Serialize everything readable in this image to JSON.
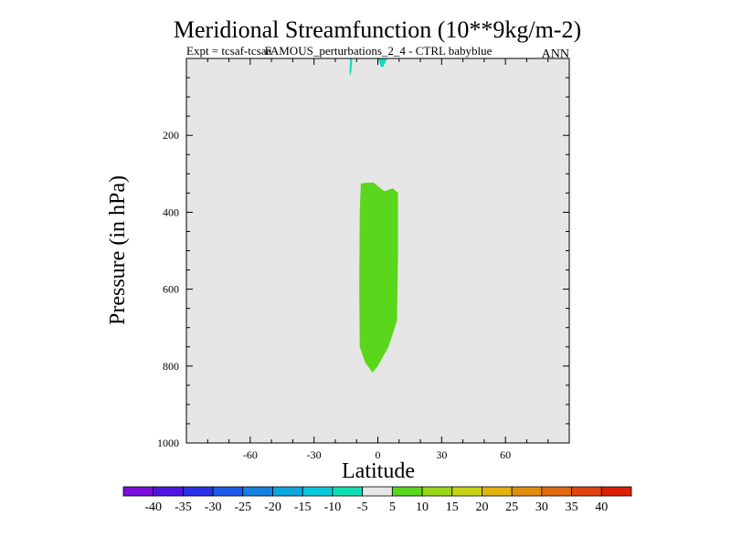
{
  "chart_data": {
    "type": "heatmap",
    "title": "Meridional Streamfunction (10**9kg/m-2)",
    "subtitle_left": "Expt = tcsaf-tcsaa",
    "subtitle_center": "FAMOUS_perturbations_2_4 - CTRL babyblue",
    "season": "ANN",
    "xlabel": "Latitude",
    "ylabel": "Pressure (in hPa)",
    "xlim": [
      -90,
      90
    ],
    "ylim": [
      1000,
      0
    ],
    "xticks": [
      -60,
      -30,
      0,
      30,
      60
    ],
    "yticks": [
      200,
      400,
      600,
      800,
      1000
    ],
    "colorbar": {
      "labels": [
        "-40",
        "-35",
        "-30",
        "-25",
        "-20",
        "-15",
        "-10",
        "-5",
        "5",
        "10",
        "15",
        "20",
        "25",
        "30",
        "35",
        "40"
      ],
      "colors": [
        "#7a0fdc",
        "#5016e0",
        "#2a32e6",
        "#1c5ce8",
        "#1682e0",
        "#0ea6e0",
        "#08c8dc",
        "#10dcb4",
        "#e6e6e6",
        "#5ad61c",
        "#96d614",
        "#c8d214",
        "#e2b210",
        "#e08e10",
        "#e06a10",
        "#e04410",
        "#dc2008"
      ]
    },
    "background_fill": "#e6e6e6",
    "regions": [
      {
        "name": "positive-5-to-10",
        "color": "#5ad61c",
        "polygon": [
          [
            -5,
            323
          ],
          [
            -8,
            325
          ],
          [
            -8.5,
            400
          ],
          [
            -8.7,
            600
          ],
          [
            -8.5,
            750
          ],
          [
            -6,
            790
          ],
          [
            -2.5,
            817
          ],
          [
            0,
            800
          ],
          [
            5,
            750
          ],
          [
            8,
            700
          ],
          [
            9,
            680
          ],
          [
            9.5,
            500
          ],
          [
            9.5,
            350
          ],
          [
            7,
            338
          ],
          [
            3,
            345
          ],
          [
            -2,
            323
          ]
        ]
      },
      {
        "name": "negative-10-to-5-left",
        "color": "#10dcb4",
        "polygon": [
          [
            -13,
            0
          ],
          [
            -12,
            0
          ],
          [
            -12.5,
            35
          ],
          [
            -12.8,
            45
          ],
          [
            -13.3,
            35
          ]
        ]
      },
      {
        "name": "negative-10-to-5-right",
        "color": "#10dcb4",
        "polygon": [
          [
            0,
            0
          ],
          [
            4.5,
            0
          ],
          [
            2.5,
            22
          ],
          [
            1.5,
            22
          ]
        ]
      }
    ]
  }
}
